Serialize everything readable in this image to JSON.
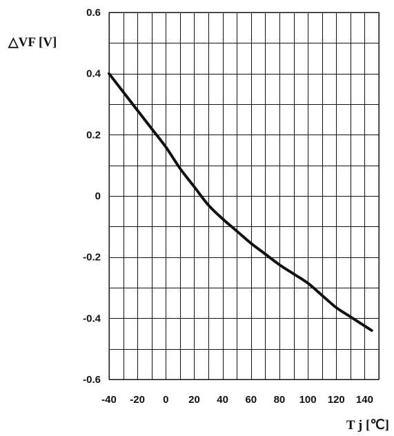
{
  "chart_data": {
    "type": "line",
    "title": "",
    "xlabel": "T j [℃]",
    "ylabel": "△VF [V]",
    "xlim": [
      -40,
      150
    ],
    "ylim": [
      -0.6,
      0.6
    ],
    "x_ticks": [
      "-40",
      "-20",
      "0",
      "20",
      "40",
      "60",
      "80",
      "100",
      "120",
      "140"
    ],
    "y_ticks": [
      "0.6",
      "0.4",
      "0.2",
      "0",
      "-0.2",
      "-0.4",
      "-0.6"
    ],
    "grid": true,
    "series": [
      {
        "x": [
          -40,
          -30,
          -20,
          -10,
          0,
          10,
          20,
          30,
          40,
          50,
          60,
          70,
          80,
          90,
          100,
          110,
          120,
          130,
          140,
          145
        ],
        "y": [
          0.4,
          0.34,
          0.28,
          0.22,
          0.16,
          0.09,
          0.03,
          -0.03,
          -0.075,
          -0.115,
          -0.155,
          -0.19,
          -0.225,
          -0.255,
          -0.285,
          -0.325,
          -0.365,
          -0.395,
          -0.425,
          -0.44
        ]
      }
    ]
  }
}
